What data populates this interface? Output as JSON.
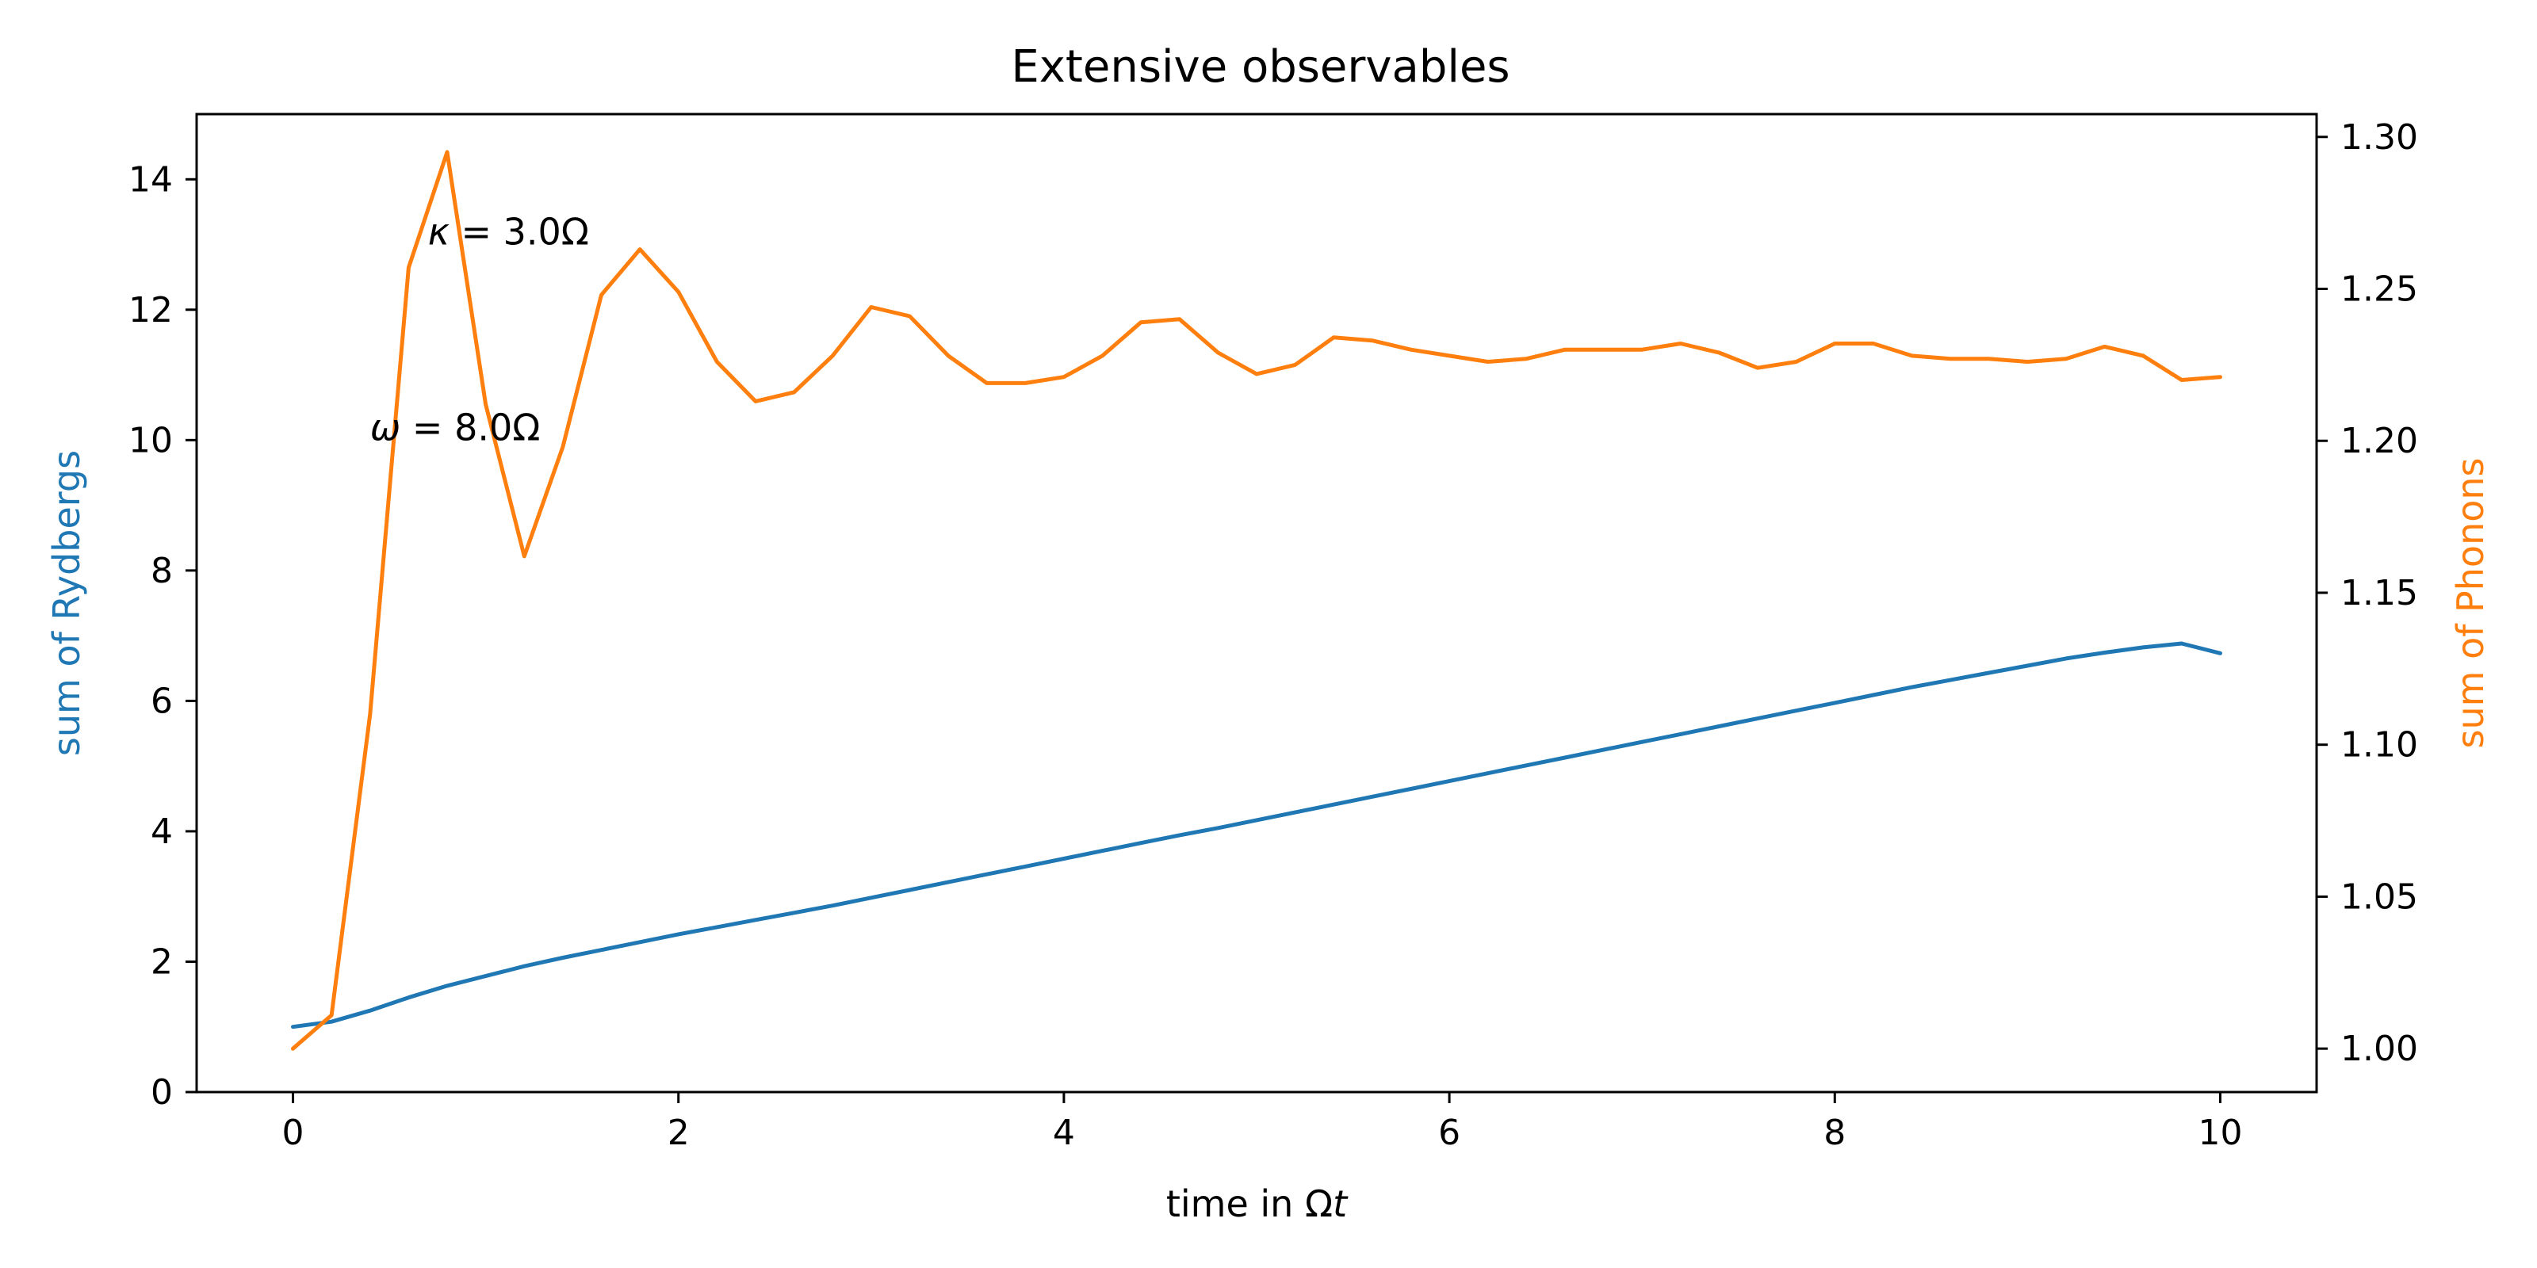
{
  "chart_data": {
    "type": "line",
    "title": "Extensive observables",
    "xlabel_prefix": "time in ",
    "xlabel_omega": "Ω",
    "xlabel_t": "t",
    "ylabel_left": "sum of Rydbergs",
    "ylabel_right": "sum of Phonons",
    "xlim": [
      -0.5,
      10.5
    ],
    "ylim_left": [
      0,
      15
    ],
    "ylim_right": [
      0.9857,
      1.3075
    ],
    "xticks": [
      0,
      2,
      4,
      6,
      8,
      10
    ],
    "yticks_left": [
      0,
      2,
      4,
      6,
      8,
      10,
      12,
      14
    ],
    "yticks_right": [
      1.0,
      1.05,
      1.1,
      1.15,
      1.2,
      1.25,
      1.3
    ],
    "yticks_right_labels": [
      "1.00",
      "1.05",
      "1.10",
      "1.15",
      "1.20",
      "1.25",
      "1.30"
    ],
    "grid": false,
    "colors": {
      "rydbergs": "#1f77b4",
      "phonons": "#ff7f0e",
      "axes": "#000000"
    },
    "annotations": [
      {
        "symbol": "κ",
        "rest": " = 3.0Ω",
        "x": 0.7,
        "y": 13.0
      },
      {
        "symbol": "ω",
        "rest": " = 8.0Ω",
        "x": 0.4,
        "y": 10.0
      }
    ],
    "series": [
      {
        "name": "sum of Rydbergs",
        "axis": "left",
        "x": [
          0.0,
          0.2,
          0.4,
          0.6,
          0.8,
          1.0,
          1.2,
          1.4,
          1.6,
          1.8,
          2.0,
          2.2,
          2.4,
          2.6,
          2.8,
          3.0,
          3.2,
          3.4,
          3.6,
          3.8,
          4.0,
          4.2,
          4.4,
          4.6,
          4.8,
          5.0,
          5.2,
          5.4,
          5.6,
          5.8,
          6.0,
          6.2,
          6.4,
          6.6,
          6.8,
          7.0,
          7.2,
          7.4,
          7.6,
          7.8,
          8.0,
          8.2,
          8.4,
          8.6,
          8.8,
          9.0,
          9.2,
          9.4,
          9.6,
          9.8,
          10.0
        ],
        "y": [
          1.0,
          1.08,
          1.25,
          1.45,
          1.63,
          1.78,
          1.93,
          2.06,
          2.18,
          2.3,
          2.42,
          2.53,
          2.64,
          2.75,
          2.86,
          2.98,
          3.1,
          3.22,
          3.34,
          3.46,
          3.58,
          3.7,
          3.82,
          3.94,
          4.05,
          4.17,
          4.29,
          4.41,
          4.53,
          4.65,
          4.77,
          4.89,
          5.01,
          5.13,
          5.25,
          5.37,
          5.49,
          5.61,
          5.73,
          5.85,
          5.97,
          6.09,
          6.21,
          6.32,
          6.43,
          6.54,
          6.65,
          6.74,
          6.82,
          6.88,
          6.73
        ]
      },
      {
        "name": "sum of Phonons",
        "axis": "right",
        "x": [
          0.0,
          0.2,
          0.4,
          0.6,
          0.8,
          1.0,
          1.2,
          1.4,
          1.6,
          1.8,
          2.0,
          2.2,
          2.4,
          2.6,
          2.8,
          3.0,
          3.2,
          3.4,
          3.6,
          3.8,
          4.0,
          4.2,
          4.4,
          4.6,
          4.8,
          5.0,
          5.2,
          5.4,
          5.6,
          5.8,
          6.0,
          6.2,
          6.4,
          6.6,
          6.8,
          7.0,
          7.2,
          7.4,
          7.6,
          7.8,
          8.0,
          8.2,
          8.4,
          8.6,
          8.8,
          9.0,
          9.2,
          9.4,
          9.6,
          9.8,
          10.0
        ],
        "y": [
          1.0,
          1.011,
          1.11,
          1.257,
          1.295,
          1.212,
          1.162,
          1.198,
          1.248,
          1.263,
          1.249,
          1.226,
          1.213,
          1.216,
          1.228,
          1.244,
          1.241,
          1.228,
          1.219,
          1.219,
          1.221,
          1.228,
          1.239,
          1.24,
          1.229,
          1.222,
          1.225,
          1.234,
          1.233,
          1.23,
          1.228,
          1.226,
          1.227,
          1.23,
          1.23,
          1.23,
          1.232,
          1.229,
          1.224,
          1.226,
          1.232,
          1.232,
          1.228,
          1.227,
          1.227,
          1.226,
          1.227,
          1.231,
          1.228,
          1.22,
          1.221
        ]
      }
    ]
  }
}
